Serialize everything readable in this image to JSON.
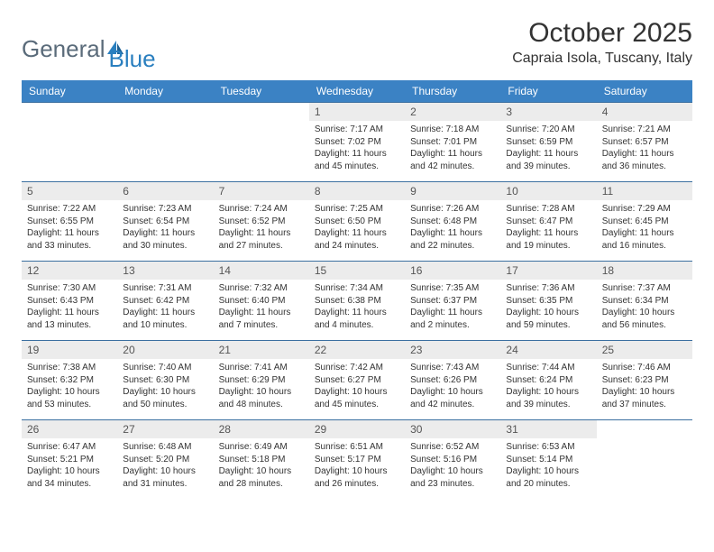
{
  "logo": {
    "general": "General",
    "blue": "Blue",
    "icon_color": "#2a7fbf"
  },
  "title": "October 2025",
  "location": "Capraia Isola, Tuscany, Italy",
  "colors": {
    "header_bg": "#3b82c4",
    "header_text": "#ffffff",
    "row_border": "#3b6fa0",
    "daynum_bg": "#ececec",
    "text": "#333333"
  },
  "dayNames": [
    "Sunday",
    "Monday",
    "Tuesday",
    "Wednesday",
    "Thursday",
    "Friday",
    "Saturday"
  ],
  "weeks": [
    [
      null,
      null,
      null,
      {
        "n": "1",
        "sr": "Sunrise: 7:17 AM",
        "ss": "Sunset: 7:02 PM",
        "dl": "Daylight: 11 hours and 45 minutes."
      },
      {
        "n": "2",
        "sr": "Sunrise: 7:18 AM",
        "ss": "Sunset: 7:01 PM",
        "dl": "Daylight: 11 hours and 42 minutes."
      },
      {
        "n": "3",
        "sr": "Sunrise: 7:20 AM",
        "ss": "Sunset: 6:59 PM",
        "dl": "Daylight: 11 hours and 39 minutes."
      },
      {
        "n": "4",
        "sr": "Sunrise: 7:21 AM",
        "ss": "Sunset: 6:57 PM",
        "dl": "Daylight: 11 hours and 36 minutes."
      }
    ],
    [
      {
        "n": "5",
        "sr": "Sunrise: 7:22 AM",
        "ss": "Sunset: 6:55 PM",
        "dl": "Daylight: 11 hours and 33 minutes."
      },
      {
        "n": "6",
        "sr": "Sunrise: 7:23 AM",
        "ss": "Sunset: 6:54 PM",
        "dl": "Daylight: 11 hours and 30 minutes."
      },
      {
        "n": "7",
        "sr": "Sunrise: 7:24 AM",
        "ss": "Sunset: 6:52 PM",
        "dl": "Daylight: 11 hours and 27 minutes."
      },
      {
        "n": "8",
        "sr": "Sunrise: 7:25 AM",
        "ss": "Sunset: 6:50 PM",
        "dl": "Daylight: 11 hours and 24 minutes."
      },
      {
        "n": "9",
        "sr": "Sunrise: 7:26 AM",
        "ss": "Sunset: 6:48 PM",
        "dl": "Daylight: 11 hours and 22 minutes."
      },
      {
        "n": "10",
        "sr": "Sunrise: 7:28 AM",
        "ss": "Sunset: 6:47 PM",
        "dl": "Daylight: 11 hours and 19 minutes."
      },
      {
        "n": "11",
        "sr": "Sunrise: 7:29 AM",
        "ss": "Sunset: 6:45 PM",
        "dl": "Daylight: 11 hours and 16 minutes."
      }
    ],
    [
      {
        "n": "12",
        "sr": "Sunrise: 7:30 AM",
        "ss": "Sunset: 6:43 PM",
        "dl": "Daylight: 11 hours and 13 minutes."
      },
      {
        "n": "13",
        "sr": "Sunrise: 7:31 AM",
        "ss": "Sunset: 6:42 PM",
        "dl": "Daylight: 11 hours and 10 minutes."
      },
      {
        "n": "14",
        "sr": "Sunrise: 7:32 AM",
        "ss": "Sunset: 6:40 PM",
        "dl": "Daylight: 11 hours and 7 minutes."
      },
      {
        "n": "15",
        "sr": "Sunrise: 7:34 AM",
        "ss": "Sunset: 6:38 PM",
        "dl": "Daylight: 11 hours and 4 minutes."
      },
      {
        "n": "16",
        "sr": "Sunrise: 7:35 AM",
        "ss": "Sunset: 6:37 PM",
        "dl": "Daylight: 11 hours and 2 minutes."
      },
      {
        "n": "17",
        "sr": "Sunrise: 7:36 AM",
        "ss": "Sunset: 6:35 PM",
        "dl": "Daylight: 10 hours and 59 minutes."
      },
      {
        "n": "18",
        "sr": "Sunrise: 7:37 AM",
        "ss": "Sunset: 6:34 PM",
        "dl": "Daylight: 10 hours and 56 minutes."
      }
    ],
    [
      {
        "n": "19",
        "sr": "Sunrise: 7:38 AM",
        "ss": "Sunset: 6:32 PM",
        "dl": "Daylight: 10 hours and 53 minutes."
      },
      {
        "n": "20",
        "sr": "Sunrise: 7:40 AM",
        "ss": "Sunset: 6:30 PM",
        "dl": "Daylight: 10 hours and 50 minutes."
      },
      {
        "n": "21",
        "sr": "Sunrise: 7:41 AM",
        "ss": "Sunset: 6:29 PM",
        "dl": "Daylight: 10 hours and 48 minutes."
      },
      {
        "n": "22",
        "sr": "Sunrise: 7:42 AM",
        "ss": "Sunset: 6:27 PM",
        "dl": "Daylight: 10 hours and 45 minutes."
      },
      {
        "n": "23",
        "sr": "Sunrise: 7:43 AM",
        "ss": "Sunset: 6:26 PM",
        "dl": "Daylight: 10 hours and 42 minutes."
      },
      {
        "n": "24",
        "sr": "Sunrise: 7:44 AM",
        "ss": "Sunset: 6:24 PM",
        "dl": "Daylight: 10 hours and 39 minutes."
      },
      {
        "n": "25",
        "sr": "Sunrise: 7:46 AM",
        "ss": "Sunset: 6:23 PM",
        "dl": "Daylight: 10 hours and 37 minutes."
      }
    ],
    [
      {
        "n": "26",
        "sr": "Sunrise: 6:47 AM",
        "ss": "Sunset: 5:21 PM",
        "dl": "Daylight: 10 hours and 34 minutes."
      },
      {
        "n": "27",
        "sr": "Sunrise: 6:48 AM",
        "ss": "Sunset: 5:20 PM",
        "dl": "Daylight: 10 hours and 31 minutes."
      },
      {
        "n": "28",
        "sr": "Sunrise: 6:49 AM",
        "ss": "Sunset: 5:18 PM",
        "dl": "Daylight: 10 hours and 28 minutes."
      },
      {
        "n": "29",
        "sr": "Sunrise: 6:51 AM",
        "ss": "Sunset: 5:17 PM",
        "dl": "Daylight: 10 hours and 26 minutes."
      },
      {
        "n": "30",
        "sr": "Sunrise: 6:52 AM",
        "ss": "Sunset: 5:16 PM",
        "dl": "Daylight: 10 hours and 23 minutes."
      },
      {
        "n": "31",
        "sr": "Sunrise: 6:53 AM",
        "ss": "Sunset: 5:14 PM",
        "dl": "Daylight: 10 hours and 20 minutes."
      },
      null
    ]
  ]
}
